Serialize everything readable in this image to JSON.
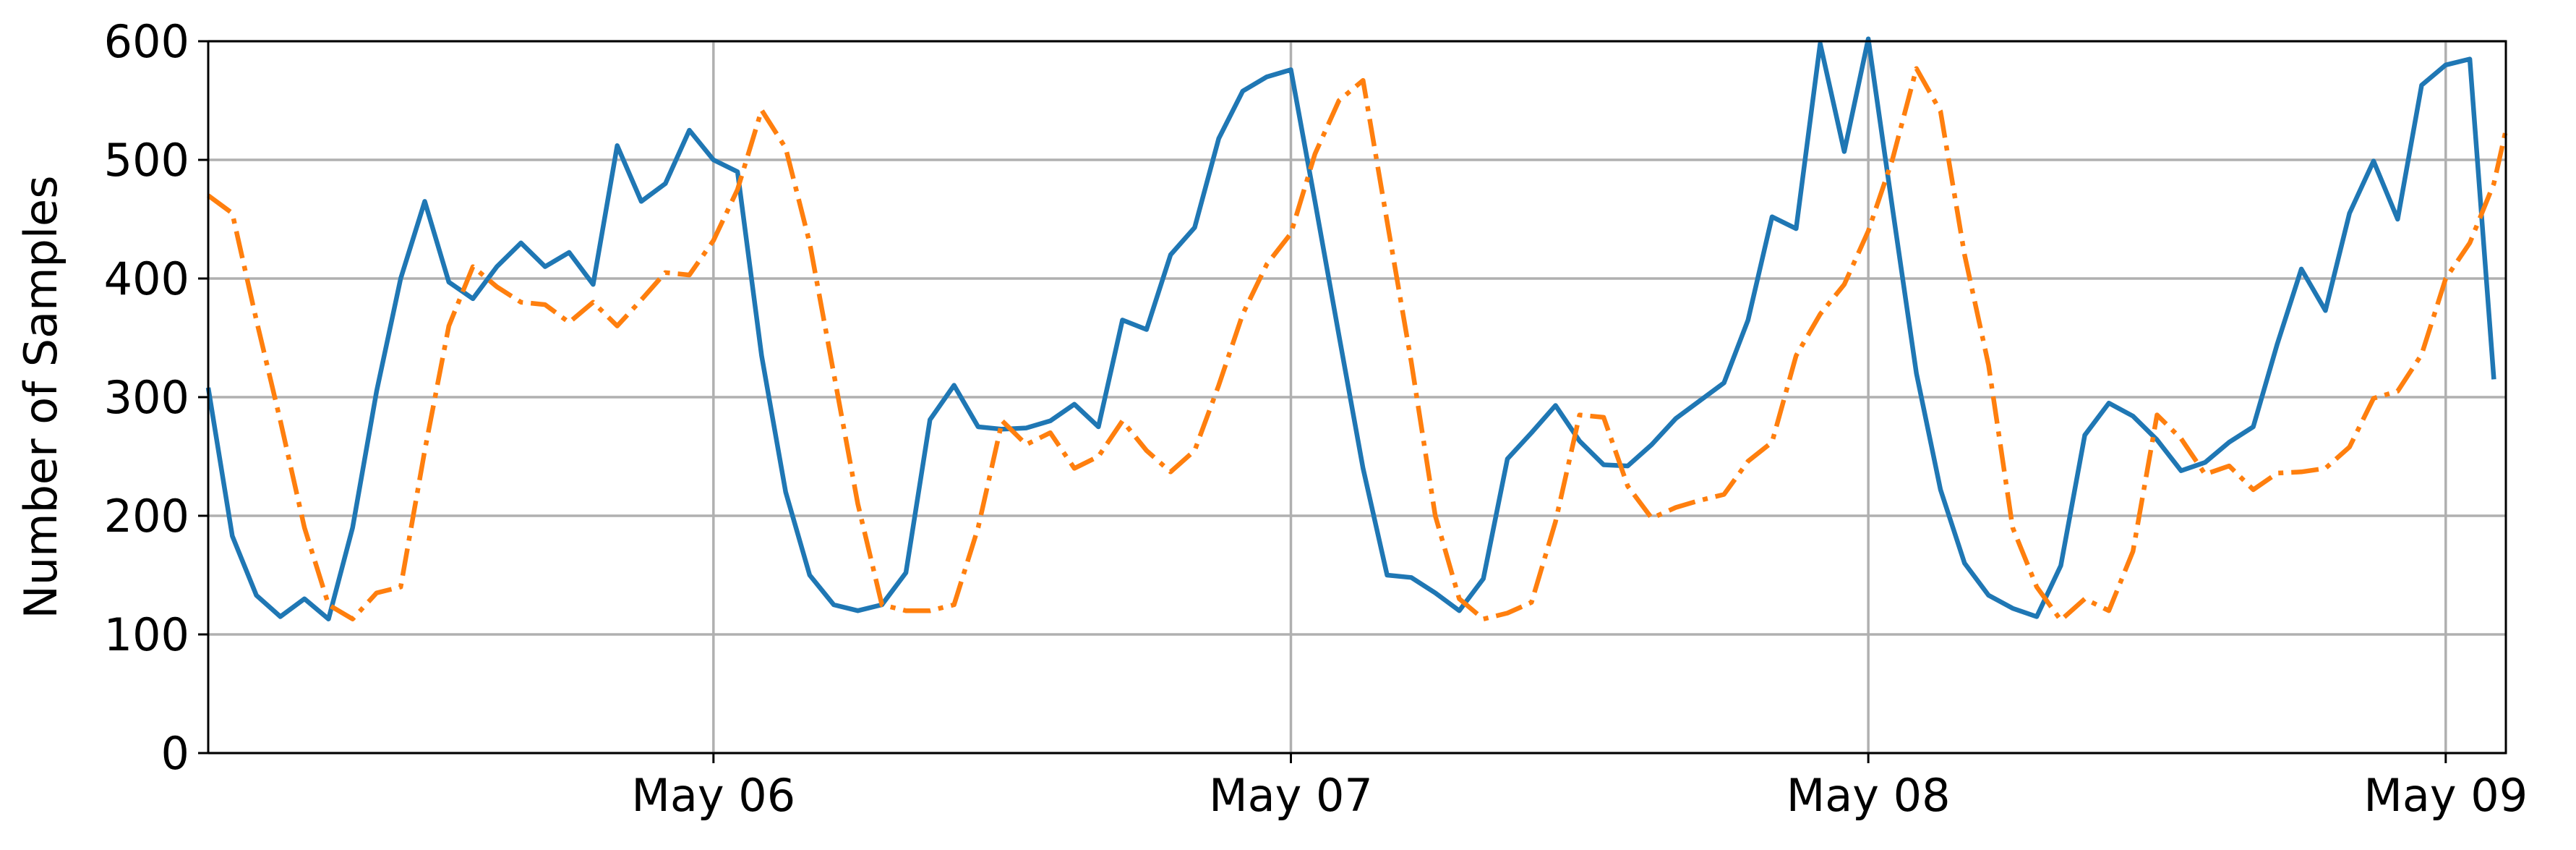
{
  "chart_data": {
    "type": "line",
    "title": "",
    "xlabel": "",
    "ylabel": "Number of Samples",
    "ylim": [
      0,
      600
    ],
    "xlim": [
      "2019-05-05 03:00",
      "2019-05-09 02:30"
    ],
    "yticks": [
      0,
      100,
      200,
      300,
      400,
      500,
      600
    ],
    "xticks": [
      {
        "value": "2019-05-06 00:00",
        "label": "May 06"
      },
      {
        "value": "2019-05-07 00:00",
        "label": "May 07"
      },
      {
        "value": "2019-05-08 00:00",
        "label": "May 08"
      },
      {
        "value": "2019-05-09 00:00",
        "label": "May 09"
      }
    ],
    "grid": true,
    "legend": null,
    "sample_interval_hours": 1,
    "series": [
      {
        "color": "#1f77b4",
        "line_style": "solid",
        "start": "2019-05-05 03:00",
        "values": [
          308,
          183,
          133,
          115,
          130,
          113,
          190,
          305,
          400,
          465,
          397,
          383,
          410,
          430,
          410,
          422,
          395,
          512,
          465,
          480,
          525,
          500,
          490,
          335,
          220,
          150,
          125,
          120,
          125,
          152,
          281,
          310,
          275,
          273,
          274,
          280,
          294,
          275,
          365,
          357,
          420,
          443,
          518,
          558,
          570,
          576,
          465,
          352,
          240,
          150,
          148,
          135,
          120,
          147,
          248,
          270,
          293,
          263,
          243,
          242,
          260,
          282,
          297,
          312,
          365,
          452,
          442,
          598,
          507,
          602,
          460,
          320,
          222,
          160,
          133,
          122,
          115,
          158,
          268,
          295,
          284,
          264,
          238,
          245,
          262,
          275,
          345,
          408,
          373,
          455,
          499,
          450,
          563,
          580,
          585,
          315
        ]
      },
      {
        "color": "#ff7f0e",
        "line_style": "dashdot",
        "start": "2019-05-05 03:00",
        "values": [
          470,
          455,
          365,
          280,
          190,
          125,
          113,
          135,
          140,
          255,
          360,
          410,
          393,
          380,
          378,
          363,
          380,
          360,
          382,
          405,
          403,
          432,
          475,
          542,
          510,
          430,
          320,
          210,
          125,
          120,
          120,
          125,
          190,
          280,
          260,
          270,
          240,
          250,
          280,
          255,
          237,
          255,
          310,
          370,
          412,
          438,
          505,
          550,
          567,
          448,
          330,
          200,
          130,
          113,
          118,
          127,
          195,
          285,
          283,
          225,
          198,
          207,
          213,
          218,
          246,
          262,
          335,
          370,
          395,
          440,
          500,
          577,
          541,
          420,
          327,
          190,
          140,
          112,
          130,
          120,
          170,
          285,
          265,
          235,
          242,
          222,
          236,
          237,
          240,
          258,
          299,
          305,
          336,
          400,
          430,
          480,
          525
        ]
      }
    ]
  }
}
